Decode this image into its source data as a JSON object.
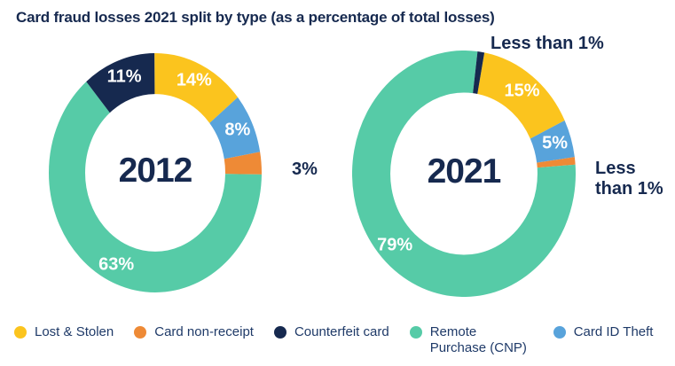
{
  "title": "Card fraud losses 2021 split by type (as a percentage of total losses)",
  "colors": {
    "yellow": "#FBC41E",
    "orange": "#EE8A36",
    "navy": "#16294F",
    "teal": "#56CBA7",
    "blue": "#58A3DB",
    "inside_label": "#FFFFFF",
    "text": "#16294F"
  },
  "chart_data": [
    {
      "type": "pie",
      "variant": "donut",
      "center_label": "2012",
      "rotation_deg": 0,
      "units": "percent of total losses",
      "segments": [
        {
          "name": "Lost & Stolen",
          "value": 14,
          "label": "14%",
          "color": "#FBC41E",
          "label_placement": "inside"
        },
        {
          "name": "Card ID Theft",
          "value": 8,
          "label": "8%",
          "color": "#58A3DB",
          "label_placement": "inside"
        },
        {
          "name": "Card non-receipt",
          "value": 3,
          "label": "3%",
          "color": "#EE8A36",
          "label_placement": "outside"
        },
        {
          "name": "Remote Purchase (CNP)",
          "value": 63,
          "label": "63%",
          "color": "#56CBA7",
          "label_placement": "inside"
        },
        {
          "name": "Counterfeit card",
          "value": 11,
          "label": "11%",
          "color": "#16294F",
          "label_placement": "inside"
        }
      ]
    },
    {
      "type": "pie",
      "variant": "donut",
      "center_label": "2021",
      "rotation_deg": 11,
      "units": "percent of total losses",
      "segments": [
        {
          "name": "Lost & Stolen",
          "value": 15,
          "label": "15%",
          "color": "#FBC41E",
          "label_placement": "inside"
        },
        {
          "name": "Card ID Theft",
          "value": 5,
          "label": "5%",
          "color": "#58A3DB",
          "label_placement": "inside"
        },
        {
          "name": "Card non-receipt",
          "value": 1,
          "label": "Less than 1%",
          "color": "#EE8A36",
          "label_placement": "outside"
        },
        {
          "name": "Remote Purchase (CNP)",
          "value": 79,
          "label": "79%",
          "color": "#56CBA7",
          "label_placement": "inside"
        },
        {
          "name": "Counterfeit card",
          "value": 1,
          "label": "Less than 1%",
          "color": "#16294F",
          "label_placement": "outside"
        }
      ]
    }
  ],
  "legend": {
    "items": [
      {
        "label": "Lost & Stolen",
        "color": "#FBC41E"
      },
      {
        "label": "Card non-receipt",
        "color": "#EE8A36"
      },
      {
        "label": "Counterfeit card",
        "color": "#16294F"
      },
      {
        "label": "Remote Purchase (CNP)",
        "color": "#56CBA7"
      },
      {
        "label": "Card ID Theft",
        "color": "#58A3DB"
      }
    ]
  }
}
